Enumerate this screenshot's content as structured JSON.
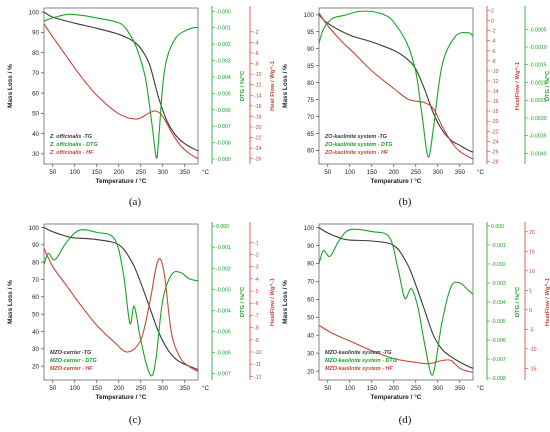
{
  "chart_data": [
    {
      "type": "line",
      "label": "(a)",
      "xlabel": "Temperature / °C",
      "xunit": "°C",
      "x_ticks": [
        50,
        100,
        150,
        200,
        250,
        300,
        350
      ],
      "xlim": [
        30,
        380
      ],
      "y_left": {
        "label": "Mass Loss / %",
        "lim": [
          25,
          102
        ],
        "ticks": [
          30,
          40,
          50,
          60,
          70,
          80,
          90,
          100
        ]
      },
      "y_mid": {
        "label": "DTG / %/°C",
        "lim": [
          -0.0093,
          0.0002
        ],
        "ticks": [
          "-0.000",
          "-0.001",
          "-0.002",
          "-0.003",
          "-0.004",
          "-0.005",
          "-0.006",
          "-0.007",
          "-0.008",
          "-0.009"
        ]
      },
      "y_right": {
        "label": "Heat Flow / Wg^-1",
        "lim": [
          -27,
          2.5
        ],
        "ticks": [
          "-2",
          "-4",
          "-6",
          "-8",
          "-10",
          "-12",
          "-14",
          "-16",
          "-18",
          "-20",
          "-22",
          "-24",
          "-26"
        ]
      },
      "legend": [
        "Z. officinalis -TG",
        "Z. officinalis - DTG",
        "Z. officinalis - HF"
      ],
      "series": [
        {
          "name": "Z. officinalis -TG",
          "axis": "left",
          "color": "#3a3a3a",
          "x": [
            30,
            50,
            100,
            150,
            200,
            230,
            250,
            270,
            290,
            310,
            330,
            350,
            370,
            380
          ],
          "y": [
            100,
            97.5,
            94.5,
            92,
            89,
            86,
            82,
            74,
            58,
            46,
            39,
            35,
            32.5,
            31.5
          ]
        },
        {
          "name": "Z. officinalis - DTG",
          "axis": "mid",
          "color": "#1aa328",
          "x": [
            30,
            50,
            80,
            100,
            150,
            200,
            220,
            240,
            260,
            275,
            285,
            290,
            300,
            310,
            330,
            350,
            370,
            380
          ],
          "y": [
            -0.0006,
            -0.0004,
            -0.0002,
            -0.0002,
            -0.0004,
            -0.0007,
            -0.0012,
            -0.0022,
            -0.004,
            -0.0068,
            -0.0089,
            -0.008,
            -0.0045,
            -0.0028,
            -0.0016,
            -0.0012,
            -0.001,
            -0.001
          ]
        },
        {
          "name": "Z. officinalis - HF",
          "axis": "right",
          "color": "#c9453a",
          "x": [
            30,
            50,
            80,
            110,
            150,
            200,
            240,
            270,
            285,
            300,
            320,
            340,
            360,
            380
          ],
          "y": [
            -0.5,
            -3,
            -6.5,
            -10,
            -14,
            -17.5,
            -18.5,
            -17.3,
            -17,
            -18,
            -21,
            -23.5,
            -25,
            -26
          ]
        }
      ]
    },
    {
      "type": "line",
      "label": "(b)",
      "xlabel": "Temperature / °C",
      "xunit": "°C",
      "x_ticks": [
        50,
        100,
        150,
        200,
        250,
        300,
        350
      ],
      "xlim": [
        30,
        380
      ],
      "y_left": {
        "label": "Mass Loss / %",
        "lim": [
          56,
          102
        ],
        "ticks": [
          60,
          65,
          70,
          75,
          80,
          85,
          90,
          95,
          100
        ]
      },
      "y_mid": {
        "label": "HeatFlow / Wg^-1",
        "lim": [
          -28.5,
          2.5
        ],
        "ticks": [
          "2",
          "0",
          "-2",
          "-4",
          "-6",
          "-8",
          "-10",
          "-12",
          "-14",
          "-16",
          "-18",
          "-20",
          "-22",
          "-24",
          "-26",
          "-28"
        ]
      },
      "y_right": {
        "label": "DTG / %/°C",
        "lim": [
          -0.0043,
          0.0001
        ],
        "ticks": [
          "-0.0005",
          "-0.0010",
          "-0.0015",
          "-0.0020",
          "-0.0025",
          "-0.0030",
          "-0.0035",
          "-0.0040"
        ]
      },
      "legend": [
        "ZO-kaolinite system -TG",
        "ZO-kaolinite system - DTG",
        "ZO-kaolinite system - HF"
      ],
      "series": [
        {
          "name": "ZO-kaolinite system -TG",
          "axis": "left",
          "color": "#3a3a3a",
          "x": [
            30,
            50,
            100,
            150,
            200,
            230,
            250,
            270,
            290,
            310,
            330,
            350,
            370,
            380
          ],
          "y": [
            100,
            97.5,
            94,
            92,
            89.5,
            87,
            84,
            78,
            71,
            66,
            63,
            61.5,
            60,
            59.5
          ]
        },
        {
          "name": "ZO-kaolinite system - DTG",
          "axis": "right",
          "color": "#1aa328",
          "x": [
            30,
            40,
            60,
            90,
            120,
            150,
            180,
            200,
            230,
            250,
            265,
            278,
            290,
            310,
            340,
            370,
            380
          ],
          "y": [
            -0.0009,
            -0.0005,
            -0.0002,
            -0.0001,
            0,
            0,
            -0.0001,
            -0.0003,
            -0.0009,
            -0.0017,
            -0.003,
            -0.0041,
            -0.0033,
            -0.0015,
            -0.0007,
            -0.0006,
            -0.0007
          ]
        },
        {
          "name": "ZO-kaolinite system - HF",
          "axis": "mid",
          "color": "#c9453a",
          "x": [
            30,
            50,
            80,
            110,
            150,
            200,
            230,
            250,
            270,
            290,
            310,
            330,
            350,
            380
          ],
          "y": [
            1.5,
            -1,
            -4,
            -6.5,
            -10,
            -13.5,
            -15.5,
            -16,
            -16.3,
            -17.5,
            -21,
            -24,
            -26,
            -27.5
          ]
        }
      ]
    },
    {
      "type": "line",
      "label": "(c)",
      "xlabel": "Temperature / °C",
      "xunit": "°C",
      "x_ticks": [
        50,
        100,
        150,
        200,
        250,
        300,
        350
      ],
      "xlim": [
        30,
        380
      ],
      "y_left": {
        "label": "Mass Loss / %",
        "lim": [
          12,
          102
        ],
        "ticks": [
          20,
          30,
          40,
          50,
          60,
          70,
          80,
          90,
          100
        ]
      },
      "y_mid": {
        "label": "DTG / %/°C",
        "lim": [
          -0.0073,
          0.0001
        ],
        "ticks": [
          "0.000",
          "-0.001",
          "-0.002",
          "-0.003",
          "-0.004",
          "-0.005",
          "-0.006",
          "-0.007"
        ]
      },
      "y_right": {
        "label": "HeatFlow / Wg^-1",
        "lim": [
          -12.3,
          0.5
        ],
        "ticks": [
          "-1",
          "-2",
          "-3",
          "-4",
          "-5",
          "-6",
          "-7",
          "-8",
          "-9",
          "-10",
          "-11",
          "-12"
        ]
      },
      "legend": [
        "MZO-carrier -TG",
        "MZO-carrier - DTG",
        "MZO-carrier - HF"
      ],
      "series": [
        {
          "name": "MZO-carrier -TG",
          "axis": "left",
          "color": "#3a3a3a",
          "x": [
            30,
            50,
            80,
            100,
            150,
            200,
            230,
            250,
            270,
            290,
            310,
            330,
            350,
            370,
            380
          ],
          "y": [
            100,
            97.5,
            95,
            94,
            93,
            90,
            80,
            68,
            54,
            40,
            30,
            24,
            21,
            19,
            18
          ]
        },
        {
          "name": "MZO-carrier - DTG",
          "axis": "mid",
          "color": "#1aa328",
          "x": [
            30,
            40,
            55,
            80,
            110,
            150,
            190,
            210,
            225,
            235,
            248,
            262,
            275,
            285,
            300,
            320,
            340,
            360,
            380
          ],
          "y": [
            -0.0018,
            -0.0013,
            -0.0016,
            -0.0008,
            -0.0002,
            -0.0003,
            -0.0006,
            -0.0022,
            -0.0046,
            -0.0038,
            -0.0052,
            -0.0065,
            -0.0071,
            -0.0062,
            -0.0035,
            -0.0023,
            -0.0022,
            -0.0025,
            -0.0026
          ]
        },
        {
          "name": "MZO-carrier - HF",
          "axis": "right",
          "color": "#c9453a",
          "x": [
            30,
            50,
            80,
            110,
            150,
            190,
            220,
            250,
            270,
            285,
            295,
            305,
            320,
            340,
            360,
            380
          ],
          "y": [
            -1.5,
            -3,
            -4.5,
            -6,
            -7.8,
            -9.2,
            -10,
            -9,
            -6,
            -3,
            -2.4,
            -4,
            -8.5,
            -10.5,
            -11.2,
            -11.6
          ]
        }
      ]
    },
    {
      "type": "line",
      "label": "(d)",
      "xlabel": "Temperature / °C",
      "xunit": "°C",
      "x_ticks": [
        50,
        100,
        150,
        200,
        250,
        300,
        350
      ],
      "xlim": [
        30,
        380
      ],
      "y_left": {
        "label": "Mass Loss / %",
        "lim": [
          15,
          102
        ],
        "ticks": [
          20,
          30,
          40,
          50,
          60,
          70,
          80,
          90,
          100
        ]
      },
      "y_mid": {
        "label": "DTG / %/°C",
        "lim": [
          -0.0081,
          0.0001
        ],
        "ticks": [
          "0.000",
          "-0.001",
          "-0.002",
          "-0.003",
          "-0.004",
          "-0.005",
          "-0.006",
          "-0.007",
          "-0.008"
        ]
      },
      "y_right": {
        "label": "HeatFlow / Wg^-1",
        "lim": [
          -18,
          22
        ],
        "ticks": [
          "20",
          "15",
          "10",
          "5",
          "0",
          "-5",
          "-10",
          "-15"
        ]
      },
      "legend": [
        "MZO-kaolinite system -TG",
        "MZO-kaolinite system - DTG",
        "MZO-kaolinite system - HF"
      ],
      "series": [
        {
          "name": "MZO-kaolinite system -TG",
          "axis": "left",
          "color": "#3a3a3a",
          "x": [
            30,
            50,
            80,
            100,
            150,
            200,
            230,
            250,
            270,
            290,
            310,
            330,
            350,
            370,
            380
          ],
          "y": [
            100,
            97,
            94,
            93,
            92.5,
            90,
            80,
            68,
            54,
            40,
            32,
            28,
            25,
            22.5,
            21.5
          ]
        },
        {
          "name": "MZO-kaolinite system - DTG",
          "axis": "mid",
          "color": "#1aa328",
          "x": [
            30,
            40,
            55,
            75,
            100,
            150,
            190,
            210,
            225,
            240,
            255,
            270,
            285,
            295,
            310,
            330,
            350,
            370,
            380
          ],
          "y": [
            -0.002,
            -0.0013,
            -0.0016,
            -0.0008,
            -0.0002,
            -0.0003,
            -0.0006,
            -0.0023,
            -0.0038,
            -0.0033,
            -0.0043,
            -0.0062,
            -0.0078,
            -0.0072,
            -0.005,
            -0.0032,
            -0.003,
            -0.0034,
            -0.0036
          ]
        },
        {
          "name": "MZO-kaolinite system - HF",
          "axis": "right",
          "color": "#c9453a",
          "x": [
            30,
            60,
            100,
            150,
            200,
            250,
            280,
            310,
            330,
            350,
            370,
            380
          ],
          "y": [
            -4,
            -6,
            -8,
            -10.5,
            -12.5,
            -13.5,
            -13.8,
            -13,
            -13,
            -15,
            -15.8,
            -16
          ]
        }
      ]
    }
  ]
}
